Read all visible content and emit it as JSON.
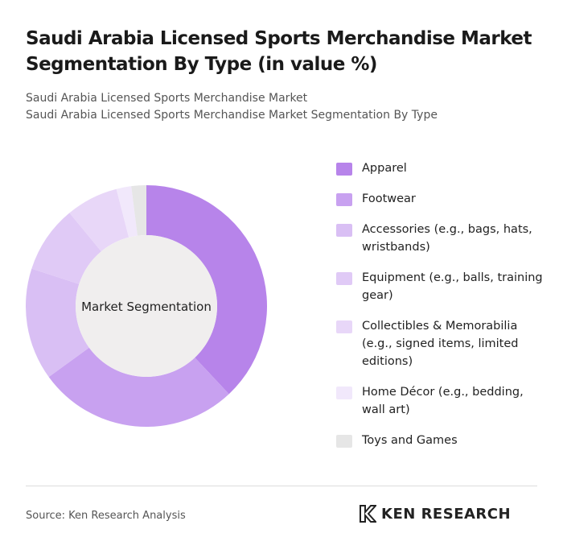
{
  "chart_data": {
    "type": "donut",
    "title": "Saudi Arabia Licensed Sports Merchandise Market Segmentation By Type (in value %)",
    "subtitle": [
      "Saudi Arabia Licensed Sports Merchandise Market",
      "Saudi Arabia Licensed Sports Merchandise Market Segmentation By Type"
    ],
    "center_label": "Market Segmentation",
    "categories": [
      "Apparel",
      "Footwear",
      "Accessories (e.g., bags, hats, wristbands)",
      "Equipment (e.g., balls, training gear)",
      "Collectibles & Memorabilia (e.g., signed items, limited editions)",
      "Home Décor (e.g., bedding, wall art)",
      "Toys and Games"
    ],
    "values": [
      38,
      27,
      15,
      9,
      7,
      2,
      2
    ],
    "colors": [
      "#b784ea",
      "#c8a1f0",
      "#d9bff4",
      "#e0caf6",
      "#e8d7f8",
      "#f1e8fb",
      "#e6e6e6"
    ],
    "legend": "right"
  },
  "footer": {
    "source": "Source: Ken Research Analysis",
    "logo": "KEN RESEARCH"
  }
}
